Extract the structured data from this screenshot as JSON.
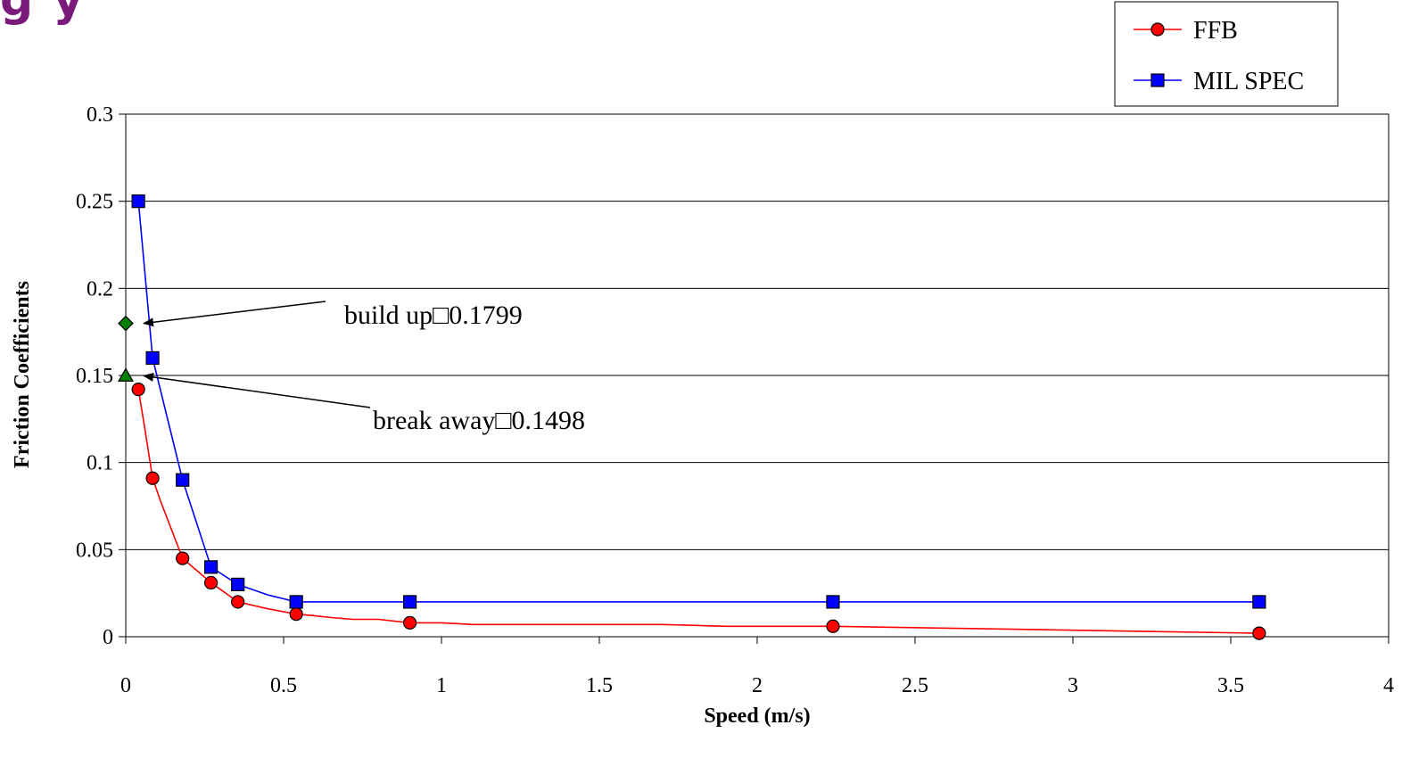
{
  "header": {
    "title_fragment": "g y"
  },
  "chart_data": {
    "type": "line",
    "xlabel": "Speed (m/s)",
    "ylabel": "Friction Coefficients",
    "xlim": [
      0,
      4
    ],
    "ylim": [
      0,
      0.3
    ],
    "x_ticks": [
      "0",
      "0.5",
      "1",
      "1.5",
      "2",
      "2.5",
      "3",
      "3.5",
      "4"
    ],
    "y_ticks": [
      "0",
      "0.05",
      "0.1",
      "0.15",
      "0.2",
      "0.25",
      "0.3"
    ],
    "grid": "horizontal",
    "legend_position": "top-right",
    "series": [
      {
        "name": "FFB",
        "color": "#ff0000",
        "marker": "circle",
        "points": [
          [
            0.04,
            0.142
          ],
          [
            0.085,
            0.091
          ],
          [
            0.18,
            0.045
          ],
          [
            0.27,
            0.031
          ],
          [
            0.355,
            0.02
          ],
          [
            0.54,
            0.013
          ],
          [
            0.9,
            0.008
          ],
          [
            2.24,
            0.006
          ],
          [
            3.59,
            0.002
          ]
        ],
        "curve": [
          [
            0.04,
            0.142
          ],
          [
            0.06,
            0.12
          ],
          [
            0.085,
            0.091
          ],
          [
            0.11,
            0.078
          ],
          [
            0.18,
            0.045
          ],
          [
            0.27,
            0.031
          ],
          [
            0.355,
            0.02
          ],
          [
            0.45,
            0.016
          ],
          [
            0.54,
            0.013
          ],
          [
            0.6,
            0.012
          ],
          [
            0.65,
            0.011
          ],
          [
            0.72,
            0.01
          ],
          [
            0.8,
            0.01
          ],
          [
            0.9,
            0.008
          ],
          [
            1.0,
            0.008
          ],
          [
            1.1,
            0.007
          ],
          [
            1.7,
            0.007
          ],
          [
            1.9,
            0.006
          ],
          [
            2.24,
            0.006
          ],
          [
            3.59,
            0.002
          ]
        ]
      },
      {
        "name": "MIL SPEC",
        "color": "#0000ff",
        "marker": "square",
        "points": [
          [
            0.04,
            0.25
          ],
          [
            0.085,
            0.16
          ],
          [
            0.18,
            0.09
          ],
          [
            0.27,
            0.04
          ],
          [
            0.355,
            0.03
          ],
          [
            0.54,
            0.02
          ],
          [
            0.9,
            0.02
          ],
          [
            2.24,
            0.02
          ],
          [
            3.59,
            0.02
          ]
        ],
        "curve": [
          [
            0.04,
            0.25
          ],
          [
            0.085,
            0.16
          ],
          [
            0.18,
            0.09
          ],
          [
            0.27,
            0.04
          ],
          [
            0.355,
            0.03
          ],
          [
            0.45,
            0.024
          ],
          [
            0.54,
            0.02
          ],
          [
            0.9,
            0.02
          ],
          [
            2.24,
            0.02
          ],
          [
            3.59,
            0.02
          ]
        ]
      }
    ],
    "annotations": [
      {
        "text": "build up□0.1799",
        "point": [
          0,
          0.1799
        ],
        "text_pos": [
          0.7,
          0.187
        ],
        "marker": "diamond",
        "marker_color": "#008000"
      },
      {
        "text": "break away□0.1498",
        "point": [
          0,
          0.1498
        ],
        "text_pos": [
          0.78,
          0.122
        ],
        "marker": "triangle",
        "marker_color": "#008000"
      }
    ]
  }
}
